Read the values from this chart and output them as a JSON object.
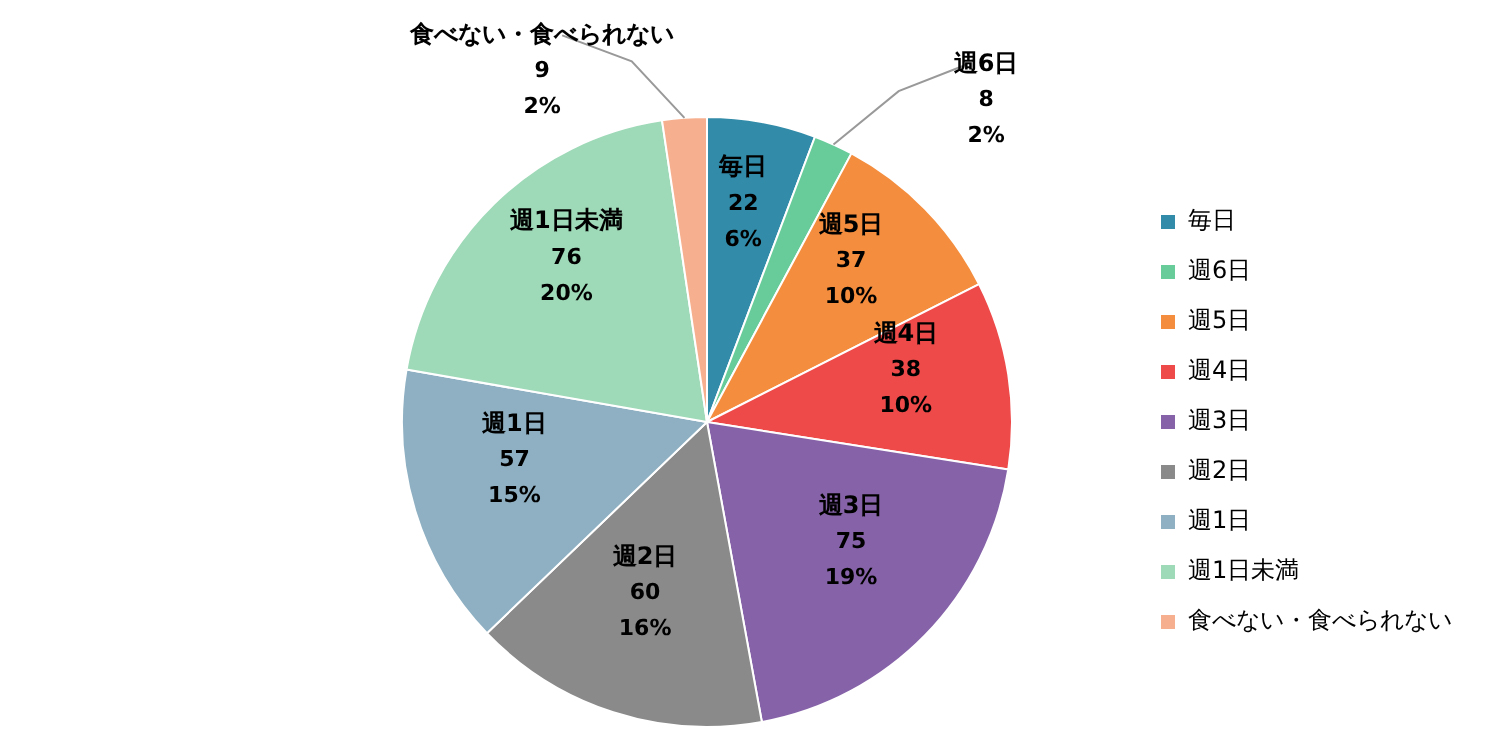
{
  "chart_data": {
    "type": "pie",
    "categories": [
      "毎日",
      "週6日",
      "週5日",
      "週4日",
      "週3日",
      "週2日",
      "週1日",
      "週1日未満",
      "食べない・食べられない"
    ],
    "values": [
      22,
      8,
      37,
      38,
      75,
      60,
      57,
      76,
      9
    ],
    "colors": [
      "#328ba8",
      "#68cc9a",
      "#f48d3d",
      "#ee4a4a",
      "#8663a8",
      "#8a8a8a",
      "#8eb0c2",
      "#9ed9b8",
      "#f7b08f"
    ],
    "value_labels": [
      "22\n6%",
      "8\n2%",
      "37\n10%",
      "38\n10%",
      "75\n19%",
      "60\n16%",
      "57\n15%",
      "76\n20%",
      "9\n2%"
    ],
    "legend": "right"
  }
}
